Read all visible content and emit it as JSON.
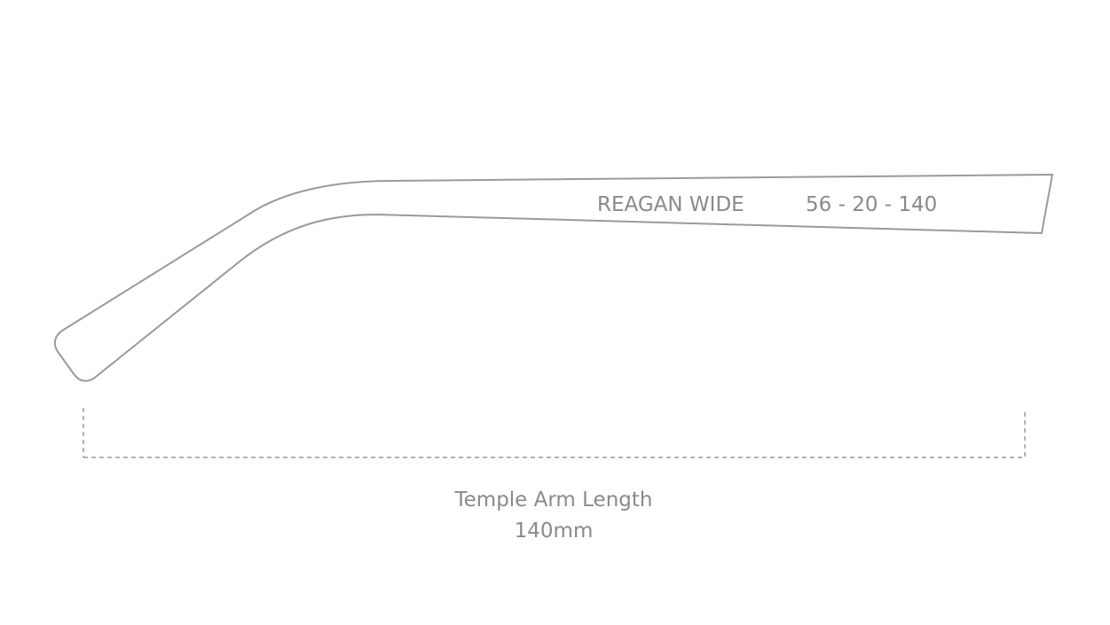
{
  "frame": {
    "model": "REAGAN WIDE",
    "size": "56 - 20 - 140"
  },
  "measurement": {
    "label": "Temple Arm Length",
    "value": "140mm"
  }
}
